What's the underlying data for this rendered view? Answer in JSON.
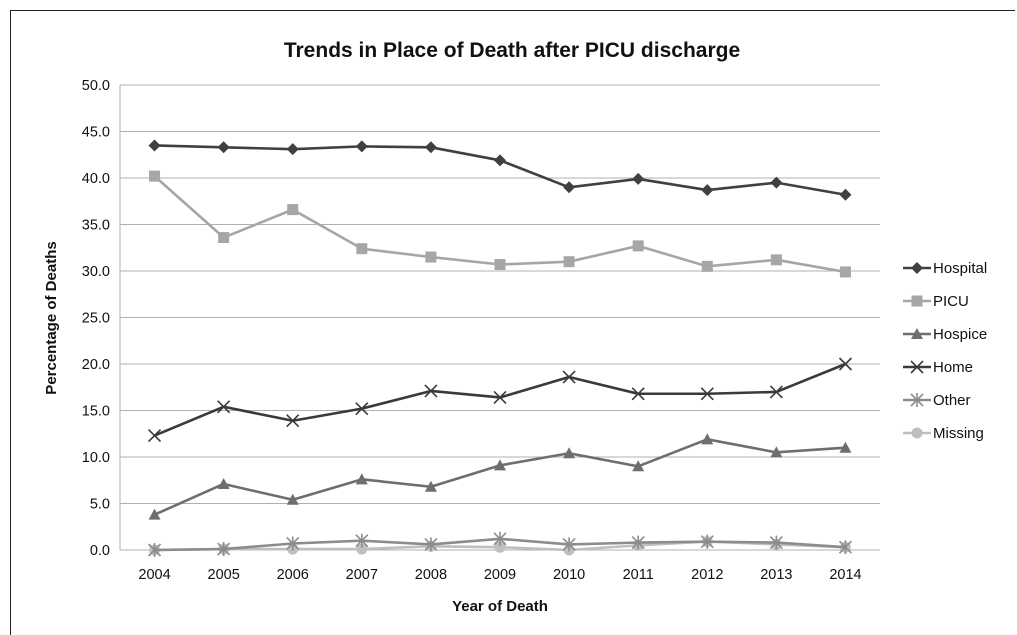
{
  "chart_data": {
    "type": "line",
    "title": "Trends in Place of Death after PICU discharge",
    "xlabel": "Year of Death",
    "ylabel": "Percentage of Deaths",
    "x": [
      "2004",
      "2005",
      "2006",
      "2007",
      "2008",
      "2009",
      "2010",
      "2011",
      "2012",
      "2013",
      "2014"
    ],
    "ylim": [
      0,
      50
    ],
    "yticks": [
      "0.0",
      "5.0",
      "10.0",
      "15.0",
      "20.0",
      "25.0",
      "30.0",
      "35.0",
      "40.0",
      "45.0",
      "50.0"
    ],
    "grid": true,
    "legend_position": "right",
    "series": [
      {
        "name": "Hospital",
        "marker": "diamond",
        "color": "#404040",
        "values": [
          43.5,
          43.3,
          43.1,
          43.4,
          43.3,
          41.9,
          39.0,
          39.9,
          38.7,
          39.5,
          38.2
        ]
      },
      {
        "name": "PICU",
        "marker": "square",
        "color": "#a6a6a6",
        "values": [
          40.2,
          33.6,
          36.6,
          32.4,
          31.5,
          30.7,
          31.0,
          32.7,
          30.5,
          31.2,
          29.9
        ]
      },
      {
        "name": "Hospice",
        "marker": "triangle",
        "color": "#6e6e6e",
        "values": [
          3.8,
          7.1,
          5.4,
          7.6,
          6.8,
          9.1,
          10.4,
          9.0,
          11.9,
          10.5,
          11.0
        ]
      },
      {
        "name": "Home",
        "marker": "x",
        "color": "#3a3a3a",
        "values": [
          12.3,
          15.4,
          13.9,
          15.2,
          17.1,
          16.4,
          18.6,
          16.8,
          16.8,
          17.0,
          20.0
        ]
      },
      {
        "name": "Other",
        "marker": "star",
        "color": "#8c8c8c",
        "values": [
          0.0,
          0.1,
          0.7,
          1.0,
          0.6,
          1.2,
          0.6,
          0.8,
          0.9,
          0.8,
          0.3
        ]
      },
      {
        "name": "Missing",
        "marker": "circle",
        "color": "#bfbfbf",
        "values": [
          0.0,
          0.1,
          0.1,
          0.1,
          0.4,
          0.3,
          0.0,
          0.5,
          0.9,
          0.6,
          0.3
        ]
      }
    ]
  }
}
